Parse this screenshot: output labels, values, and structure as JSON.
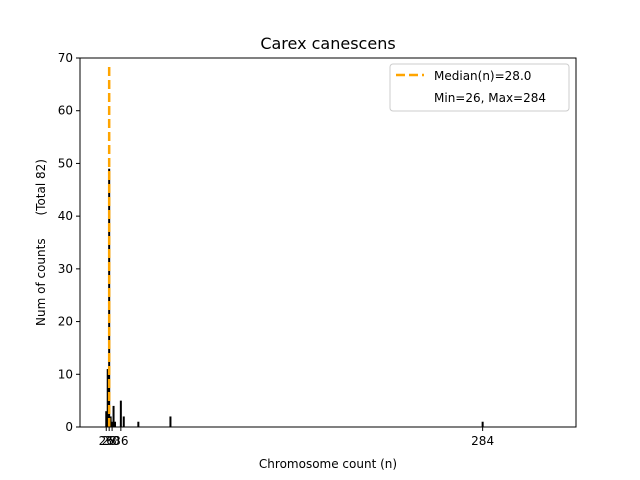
{
  "chart_data": {
    "type": "bar",
    "title": "Carex canescens",
    "xlabel": "Chromosome count (n)",
    "ylabel_main": "Num of counts",
    "ylabel_total": "(Total 82)",
    "xlim": [
      8,
      348
    ],
    "ylim": [
      0,
      70
    ],
    "yticks": [
      0,
      10,
      20,
      30,
      40,
      50,
      60,
      70
    ],
    "ytick_labels": [
      "0",
      "10",
      "20",
      "30",
      "40",
      "50",
      "60",
      "70"
    ],
    "xticks": [
      26,
      28,
      30,
      36,
      284
    ],
    "xtick_labels": [
      "26",
      "28",
      "30",
      "36",
      "284"
    ],
    "bars": [
      {
        "x": 26,
        "count": 3
      },
      {
        "x": 27,
        "count": 11
      },
      {
        "x": 28,
        "count": 49
      },
      {
        "x": 29,
        "count": 2
      },
      {
        "x": 30,
        "count": 1
      },
      {
        "x": 31,
        "count": 4
      },
      {
        "x": 32,
        "count": 1
      },
      {
        "x": 36,
        "count": 5
      },
      {
        "x": 38,
        "count": 2
      },
      {
        "x": 48,
        "count": 1
      },
      {
        "x": 70,
        "count": 2
      },
      {
        "x": 284,
        "count": 1
      }
    ],
    "median": 28.0,
    "median_color": "#ffa500",
    "bar_color": "#000000",
    "legend": {
      "position": "top-right",
      "median_label": "Median(n)=28.0",
      "range_label": "Min=26, Max=284"
    }
  }
}
